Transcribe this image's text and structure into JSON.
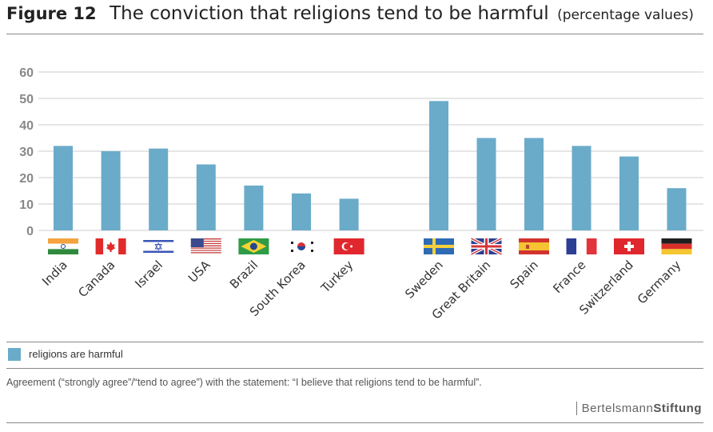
{
  "header": {
    "figure_label": "Figure 12",
    "title": "The conviction that religions tend to be harmful",
    "subtitle": "(percentage values)"
  },
  "colors": {
    "bar": "#6aabc9",
    "axis_text": "#888888",
    "grid": "#cccccc"
  },
  "chart_data": {
    "type": "bar",
    "title": "The conviction that religions tend to be harmful (percentage values)",
    "xlabel": "",
    "ylabel": "",
    "ylim": [
      0,
      60
    ],
    "yticks": [
      0,
      10,
      20,
      30,
      40,
      50,
      60
    ],
    "grid": true,
    "groups": [
      {
        "categories": [
          "India",
          "Canada",
          "Israel",
          "USA",
          "Brazil",
          "South Korea",
          "Turkey"
        ],
        "values": [
          32,
          30,
          31,
          25,
          17,
          14,
          12
        ]
      },
      {
        "categories": [
          "Sweden",
          "Great Britain",
          "Spain",
          "France",
          "Switzerland",
          "Germany"
        ],
        "values": [
          49,
          35,
          35,
          32,
          28,
          16
        ]
      }
    ],
    "series": [
      {
        "name": "religions are harmful"
      }
    ],
    "legend_position": "bottom-left"
  },
  "legend": {
    "label": "religions are harmful"
  },
  "note": "Agreement (“strongly agree”/“tend to agree”) with the statement: “I believe that religions tend to be harmful”.",
  "brand": {
    "part1": "Bertelsmann",
    "part2": "Stiftung"
  }
}
